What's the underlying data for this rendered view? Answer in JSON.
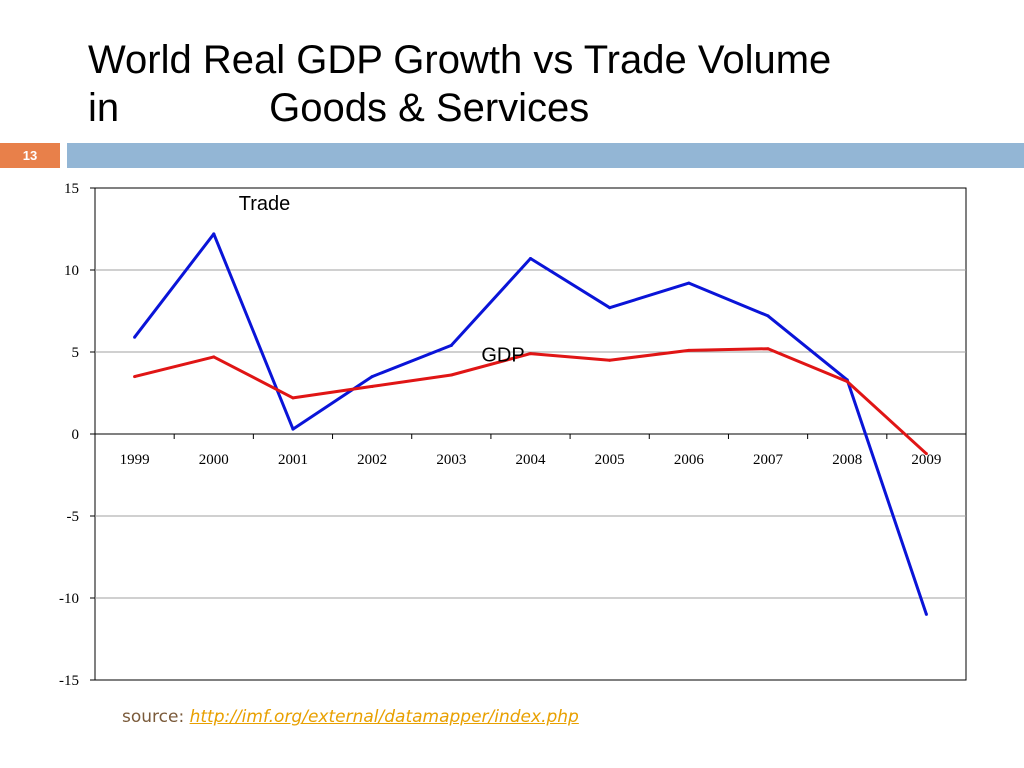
{
  "slide": {
    "title_line1": "World Real GDP Growth vs Trade Volume",
    "title_line2_a": "in",
    "title_line2_b": "Goods & Services",
    "number": "13",
    "source_label": "source:",
    "source_link": "http://imf.org/external/datamapper/index.php"
  },
  "colors": {
    "accent": "#e8804a",
    "bar": "#93b6d5",
    "trade": "#0a14d8",
    "gdp": "#e01515"
  },
  "chart_data": {
    "type": "line",
    "categories": [
      "1999",
      "2000",
      "2001",
      "2002",
      "2003",
      "2004",
      "2005",
      "2006",
      "2007",
      "2008",
      "2009"
    ],
    "series": [
      {
        "name": "Trade",
        "color": "#0a14d8",
        "values": [
          5.9,
          12.2,
          0.3,
          3.5,
          5.4,
          10.7,
          7.7,
          9.2,
          7.2,
          3.3,
          -11.0
        ]
      },
      {
        "name": "GDP",
        "color": "#e01515",
        "values": [
          3.5,
          4.7,
          2.2,
          2.9,
          3.6,
          4.9,
          4.5,
          5.1,
          5.2,
          3.2,
          -1.2
        ]
      }
    ],
    "yticks": [
      15,
      10,
      5,
      0,
      -5,
      -10,
      -15
    ],
    "ylim": [
      -15,
      15
    ],
    "grid": true
  }
}
